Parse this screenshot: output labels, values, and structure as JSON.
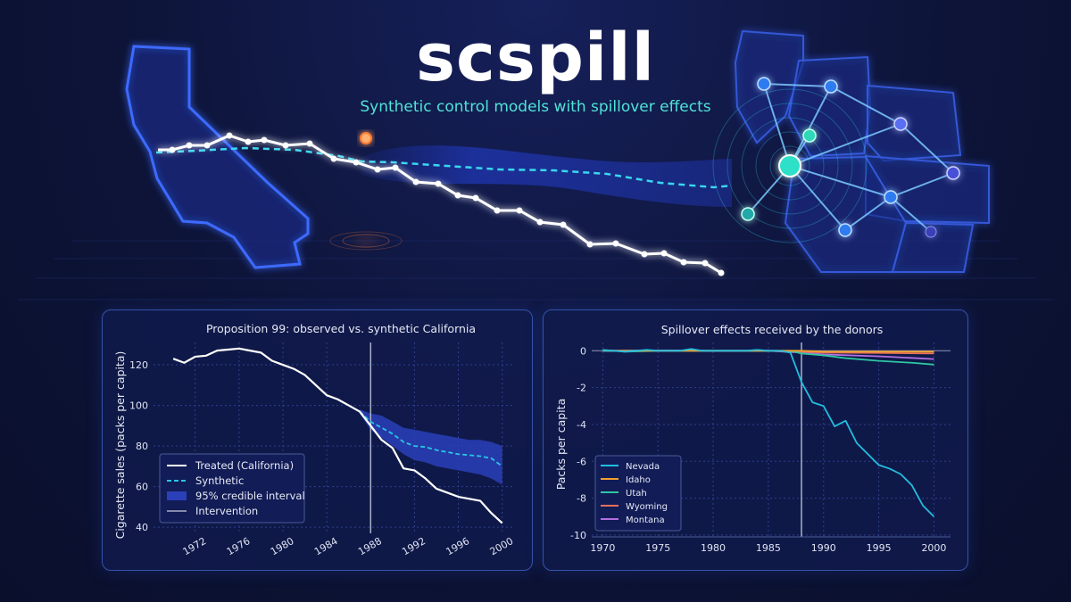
{
  "header": {
    "title": "scspill",
    "tagline": "Synthetic control models with spillover effects"
  },
  "colors": {
    "background": "#0c1233",
    "accent_cyan": "#3fd0e8",
    "treated": "#ffffff",
    "synthetic": "#29c6e6",
    "interval": "#2a3fb8",
    "intervention_marker": "#ff8a3d"
  },
  "chart_data": [
    {
      "type": "line",
      "title": "Proposition 99: observed vs. synthetic California",
      "xlabel": "",
      "ylabel": "Cigarette sales (packs per capita)",
      "xlim": [
        1968.2,
        2001
      ],
      "ylim": [
        37,
        131
      ],
      "xticks": [
        1972,
        1976,
        1980,
        1984,
        1988,
        1992,
        1996,
        2000
      ],
      "yticks": [
        40,
        60,
        80,
        100,
        120
      ],
      "grid": true,
      "legend_position": "bottom-left",
      "intervention_year": 1988,
      "series": [
        {
          "name": "Treated (California)",
          "style": "solid",
          "color": "#ffffff",
          "x": [
            1970,
            1971,
            1972,
            1973,
            1974,
            1975,
            1976,
            1977,
            1978,
            1979,
            1980,
            1981,
            1982,
            1983,
            1984,
            1985,
            1986,
            1987,
            1988,
            1989,
            1990,
            1991,
            1992,
            1993,
            1994,
            1995,
            1996,
            1997,
            1998,
            1999,
            2000
          ],
          "y": [
            123,
            121,
            124,
            124.5,
            127,
            127.5,
            128,
            127,
            126,
            122,
            120,
            118,
            115,
            110,
            105,
            103,
            100,
            97,
            90,
            83,
            79,
            69,
            68,
            64,
            59,
            57,
            55,
            54,
            53,
            47,
            42
          ]
        },
        {
          "name": "Synthetic",
          "style": "dashed",
          "color": "#29c6e6",
          "x": [
            1987,
            1988,
            1989,
            1990,
            1991,
            1992,
            1993,
            1994,
            1995,
            1996,
            1997,
            1998,
            1999,
            2000
          ],
          "y": [
            97,
            92,
            89,
            86,
            82,
            80,
            79.5,
            78,
            77,
            76,
            75.5,
            75,
            74,
            70
          ]
        },
        {
          "name": "95% credible interval",
          "type": "band",
          "color": "#2a3fb8",
          "x": [
            1987,
            1988,
            1989,
            1990,
            1991,
            1992,
            1993,
            1994,
            1995,
            1996,
            1997,
            1998,
            1999,
            2000
          ],
          "lower": [
            96,
            88,
            84,
            80,
            76,
            73,
            72,
            70,
            69,
            68,
            67,
            66,
            64,
            61
          ],
          "upper": [
            98,
            96,
            95,
            92,
            89,
            88,
            87,
            86,
            85,
            84,
            83,
            83,
            82,
            80
          ]
        },
        {
          "name": "Intervention",
          "type": "vline",
          "color": "#a9b0c8",
          "x": 1988
        }
      ]
    },
    {
      "type": "line",
      "title": "Spillover effects received by the donors",
      "xlabel": "",
      "ylabel": "Packs per capita",
      "xlim": [
        1969,
        2001.5
      ],
      "ylim": [
        -10.1,
        0.45
      ],
      "xticks": [
        1970,
        1975,
        1980,
        1985,
        1990,
        1995,
        2000
      ],
      "yticks": [
        0,
        -2,
        -4,
        -6,
        -8,
        -10
      ],
      "grid": true,
      "legend_position": "bottom-left",
      "intervention_year": 1988,
      "series": [
        {
          "name": "Nevada",
          "color": "#22bde0",
          "x": [
            1970,
            1971,
            1972,
            1973,
            1974,
            1975,
            1976,
            1977,
            1978,
            1979,
            1980,
            1981,
            1982,
            1983,
            1984,
            1985,
            1986,
            1987,
            1988,
            1989,
            1990,
            1991,
            1992,
            1993,
            1994,
            1995,
            1996,
            1997,
            1998,
            1999,
            2000
          ],
          "y": [
            0,
            0,
            -0.05,
            0,
            0.05,
            0,
            0,
            0,
            0.1,
            0,
            0,
            0,
            0,
            0,
            0.05,
            0,
            0,
            -0.1,
            -1.7,
            -2.8,
            -3,
            -4.1,
            -3.8,
            -5,
            -5.6,
            -6.2,
            -6.4,
            -6.7,
            -7.3,
            -8.4,
            -9
          ]
        },
        {
          "name": "Idaho",
          "color": "#f0a030",
          "x": [
            1970,
            1975,
            1980,
            1985,
            1988,
            1990,
            1995,
            2000
          ],
          "y": [
            0,
            0,
            0,
            0,
            0,
            -0.05,
            -0.05,
            -0.05
          ]
        },
        {
          "name": "Utah",
          "color": "#2cc7a2",
          "x": [
            1970,
            1972,
            1975,
            1980,
            1985,
            1987,
            1988,
            1990,
            1992,
            1995,
            1998,
            2000
          ],
          "y": [
            0.05,
            -0.05,
            0,
            0,
            0,
            0,
            -0.15,
            -0.25,
            -0.4,
            -0.55,
            -0.65,
            -0.75
          ]
        },
        {
          "name": "Wyoming",
          "color": "#e8705a",
          "x": [
            1970,
            1975,
            1980,
            1985,
            1988,
            1990,
            1995,
            2000
          ],
          "y": [
            0,
            0,
            0,
            0,
            -0.05,
            -0.1,
            -0.12,
            -0.15
          ]
        },
        {
          "name": "Montana",
          "color": "#b070e0",
          "x": [
            1970,
            1975,
            1980,
            1985,
            1988,
            1990,
            1995,
            2000
          ],
          "y": [
            0,
            0.02,
            0,
            0,
            -0.1,
            -0.2,
            -0.3,
            -0.45
          ]
        }
      ]
    }
  ]
}
